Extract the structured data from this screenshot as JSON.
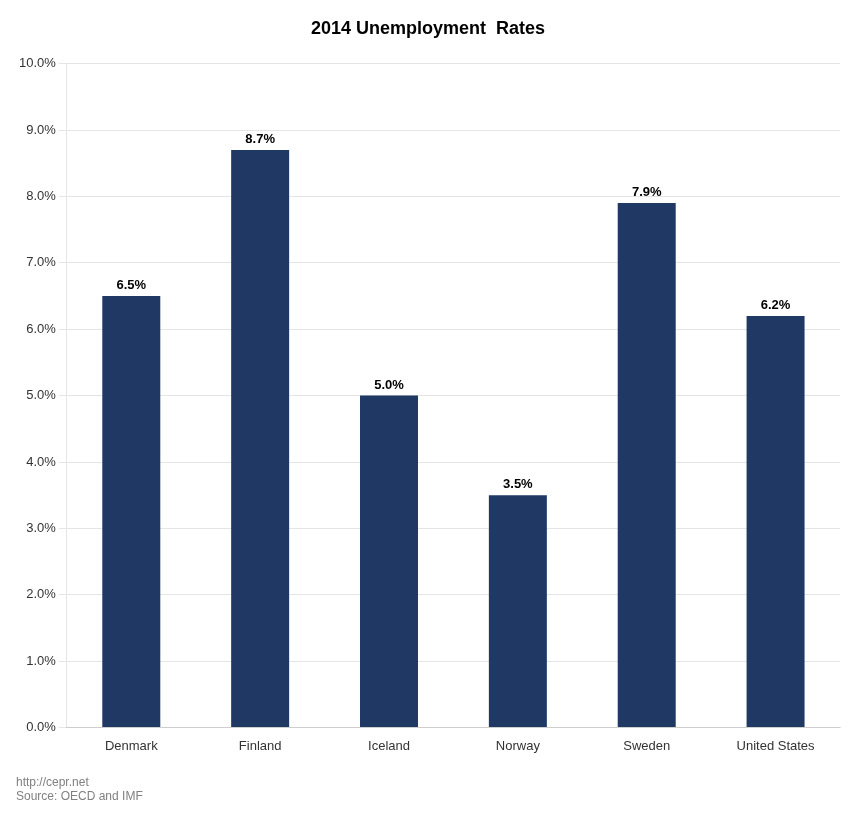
{
  "chart_data": {
    "type": "bar",
    "title": "2014 Unemployment  Rates",
    "categories": [
      "Denmark",
      "Finland",
      "Iceland",
      "Norway",
      "Sweden",
      "United States"
    ],
    "values": [
      0.065,
      0.087,
      0.05,
      0.035,
      0.079,
      0.062
    ],
    "value_labels": [
      "6.5%",
      "8.7%",
      "5.0%",
      "3.5%",
      "7.9%",
      "6.2%"
    ],
    "data_labels": true,
    "color": "#1F3864",
    "ylim": [
      0,
      0.1
    ],
    "yticks": [
      {
        "value": 0.0,
        "label": "0.0%"
      },
      {
        "value": 0.01,
        "label": "1.0%"
      },
      {
        "value": 0.02,
        "label": "2.0%"
      },
      {
        "value": 0.03,
        "label": "3.0%"
      },
      {
        "value": 0.04,
        "label": "4.0%"
      },
      {
        "value": 0.05,
        "label": "5.0%"
      },
      {
        "value": 0.06,
        "label": "6.0%"
      },
      {
        "value": 0.07,
        "label": "7.0%"
      },
      {
        "value": 0.08,
        "label": "8.0%"
      },
      {
        "value": 0.09,
        "label": "9.0%"
      },
      {
        "value": 0.1,
        "label": "10.0%"
      }
    ],
    "grid": true,
    "annotations": [
      "http://cepr.net",
      "Source: OECD and IMF"
    ]
  }
}
